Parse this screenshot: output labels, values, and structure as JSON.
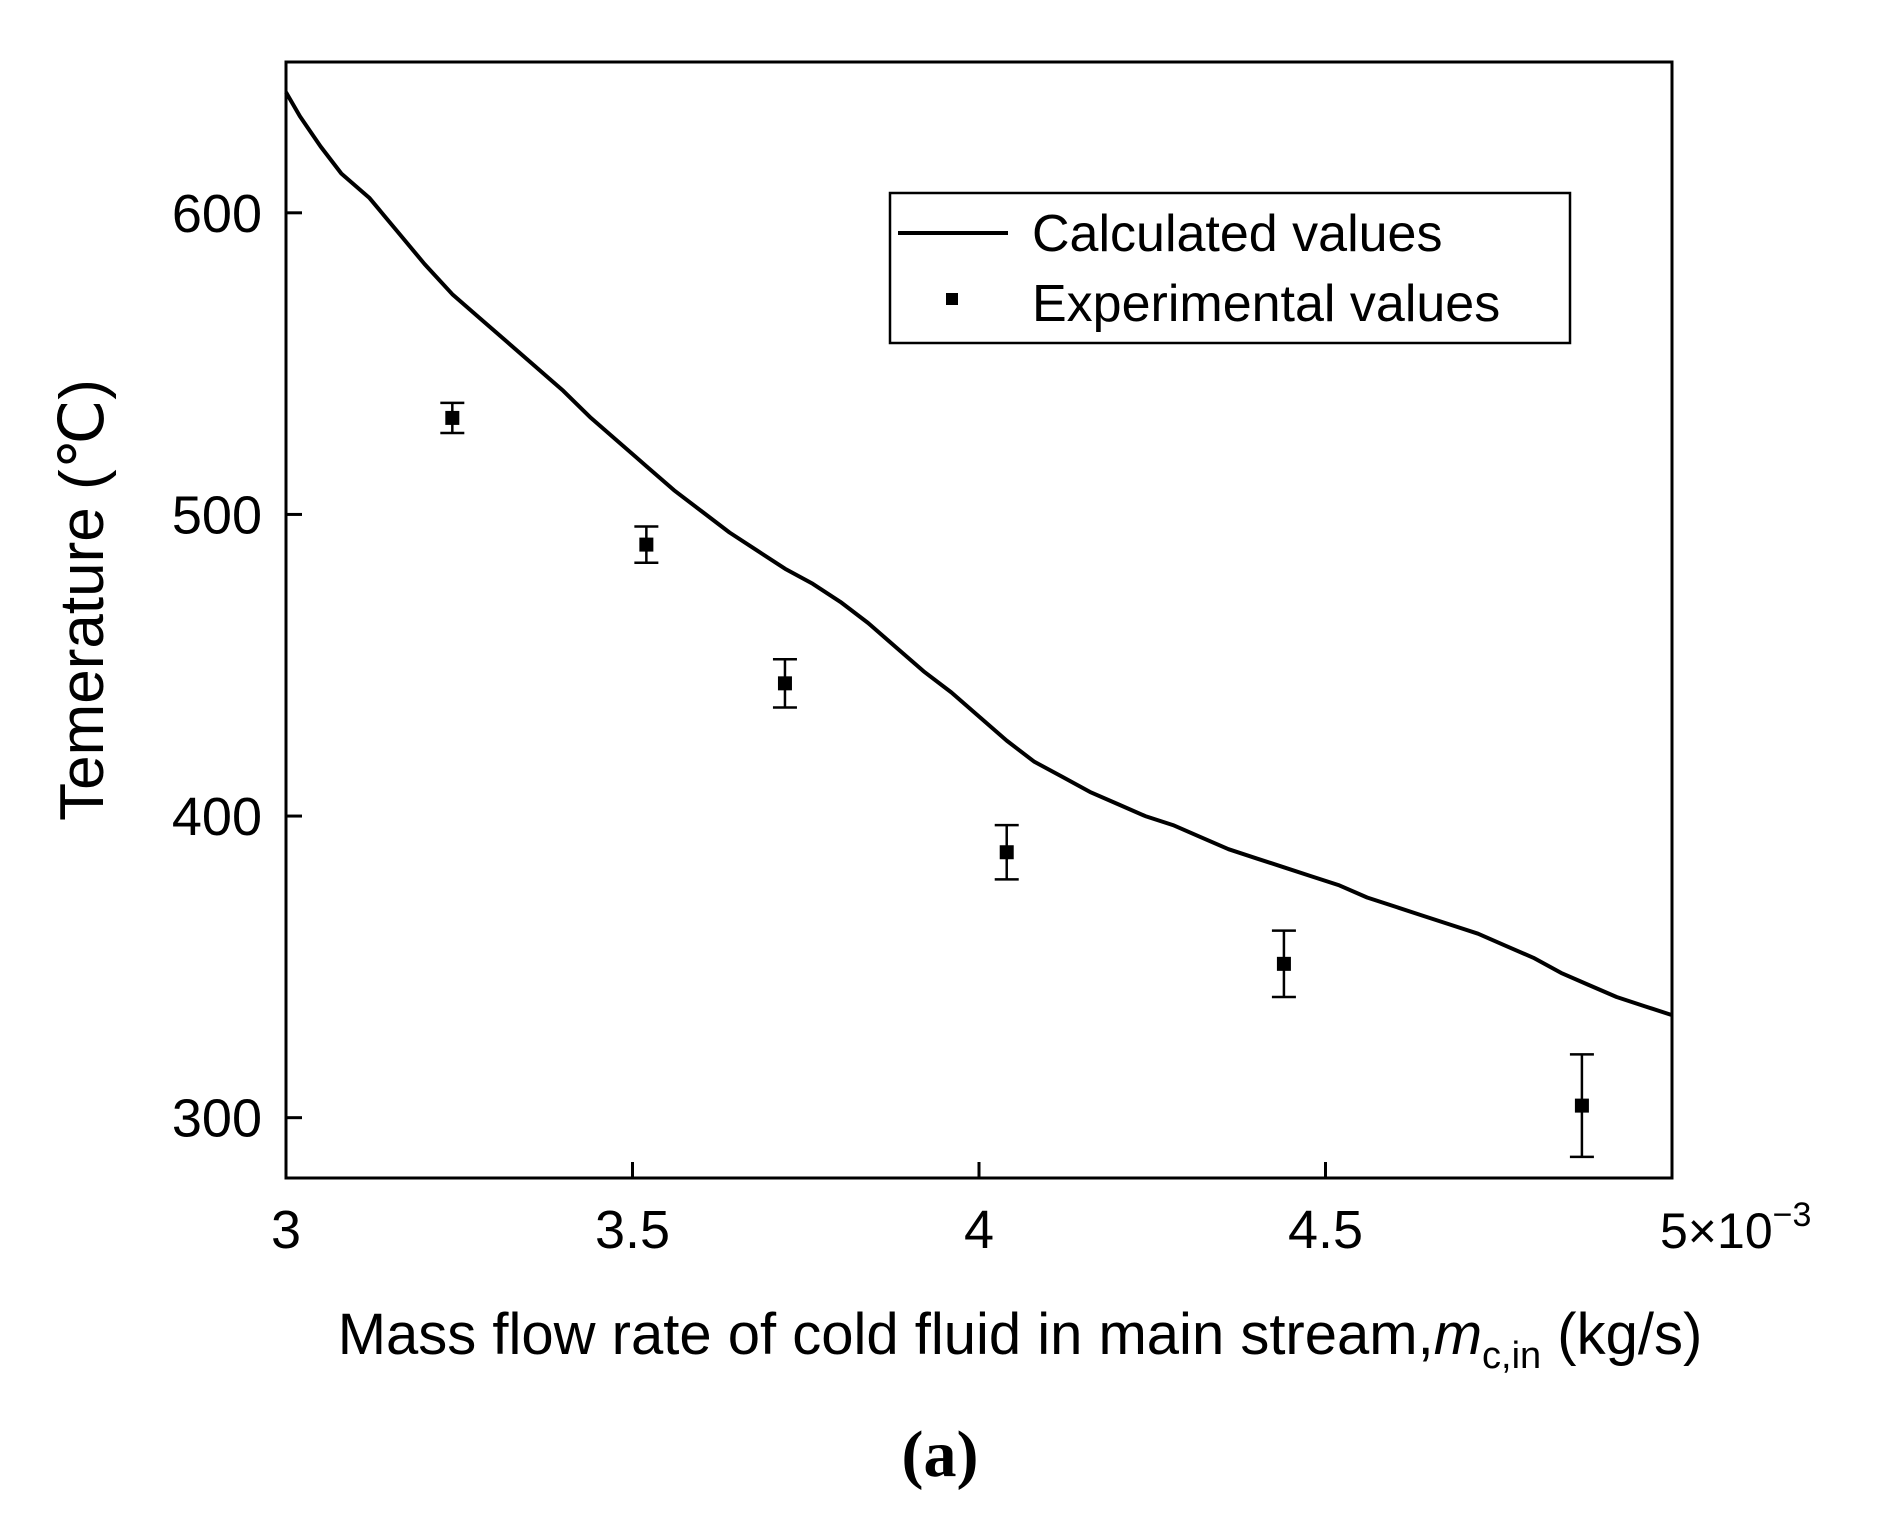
{
  "chart_data": {
    "type": "line",
    "title": "",
    "xlabel": "Mass flow rate of cold fluid in main stream,",
    "xlabel_symbol": "m",
    "xlabel_subscript": "c,in",
    "xlabel_unit": "(kg/s)",
    "ylabel": "Temerature (℃)",
    "x_multiplier_base": "5×10",
    "x_multiplier_exp": "−3",
    "panel_label": "(a)",
    "xlim": [
      3.0,
      5.0
    ],
    "ylim": [
      280,
      650
    ],
    "x_ticks": [
      {
        "value": 3.0,
        "label": "3"
      },
      {
        "value": 3.5,
        "label": "3.5"
      },
      {
        "value": 4.0,
        "label": "4"
      },
      {
        "value": 4.5,
        "label": "4.5"
      }
    ],
    "y_ticks": [
      {
        "value": 300,
        "label": "300"
      },
      {
        "value": 400,
        "label": "400"
      },
      {
        "value": 500,
        "label": "500"
      },
      {
        "value": 600,
        "label": "600"
      }
    ],
    "legend": {
      "position": "top-right",
      "entries": [
        {
          "label": "Calculated values",
          "marker": "line"
        },
        {
          "label": "Experimental values",
          "marker": "square"
        }
      ]
    },
    "series": [
      {
        "name": "Calculated values",
        "kind": "line",
        "color": "#000000",
        "x": [
          3.0,
          3.02,
          3.05,
          3.08,
          3.12,
          3.16,
          3.2,
          3.24,
          3.28,
          3.32,
          3.36,
          3.4,
          3.44,
          3.48,
          3.52,
          3.56,
          3.6,
          3.64,
          3.68,
          3.72,
          3.76,
          3.8,
          3.84,
          3.88,
          3.92,
          3.96,
          4.0,
          4.04,
          4.08,
          4.12,
          4.16,
          4.2,
          4.24,
          4.28,
          4.32,
          4.36,
          4.4,
          4.44,
          4.48,
          4.52,
          4.56,
          4.6,
          4.64,
          4.68,
          4.72,
          4.76,
          4.8,
          4.84,
          4.88,
          4.92,
          4.96,
          5.0
        ],
        "values": [
          640,
          632,
          622,
          613,
          605,
          594,
          583,
          573,
          565,
          557,
          549,
          541,
          532,
          524,
          516,
          508,
          501,
          494,
          488,
          482,
          477,
          471,
          464,
          456,
          448,
          441,
          433,
          425,
          418,
          413,
          408,
          404,
          400,
          397,
          393,
          389,
          386,
          383,
          380,
          377,
          373,
          370,
          367,
          364,
          361,
          357,
          353,
          348,
          344,
          340,
          337,
          334
        ]
      },
      {
        "name": "Experimental values",
        "kind": "scatter",
        "marker": "square",
        "color": "#000000",
        "x": [
          3.24,
          3.52,
          3.72,
          4.04,
          4.44,
          4.87
        ],
        "values": [
          532,
          490,
          444,
          388,
          351,
          304
        ],
        "error": [
          5,
          6,
          8,
          9,
          11,
          17
        ]
      }
    ]
  }
}
